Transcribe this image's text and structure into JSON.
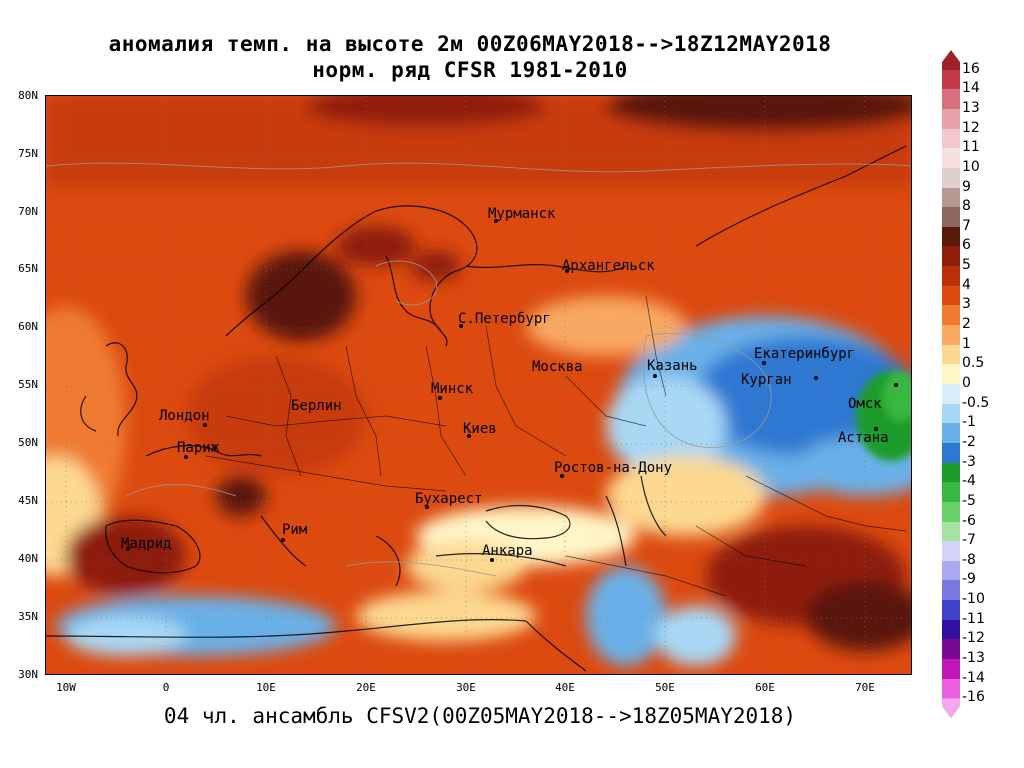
{
  "title": {
    "line1": "аномалия темп. на высоте 2м 00Z06MAY2018-->18Z12MAY2018",
    "line2": "норм. ряд CFSR 1981-2010"
  },
  "footer": "04 чл. ансамбль CFSV2(00Z05MAY2018-->18Z05MAY2018)",
  "map": {
    "lat_labels": [
      "80N",
      "75N",
      "70N",
      "65N",
      "60N",
      "55N",
      "50N",
      "45N",
      "40N",
      "35N",
      "30N"
    ],
    "lon_labels": [
      "10W",
      "0",
      "10E",
      "20E",
      "30E",
      "40E",
      "50E",
      "60E",
      "70E"
    ],
    "cities": [
      {
        "name": "Мурманск"
      },
      {
        "name": "Архангельск"
      },
      {
        "name": "С.Петербург"
      },
      {
        "name": "Москва"
      },
      {
        "name": "Казань"
      },
      {
        "name": "Екатеринбург"
      },
      {
        "name": "Курган"
      },
      {
        "name": "Омск"
      },
      {
        "name": "Астана"
      },
      {
        "name": "Минск"
      },
      {
        "name": "Киев"
      },
      {
        "name": "Берлин"
      },
      {
        "name": "Лондон"
      },
      {
        "name": "Париж"
      },
      {
        "name": "Ростов-на-Дону"
      },
      {
        "name": "Бухарест"
      },
      {
        "name": "Рим"
      },
      {
        "name": "Мадрид"
      },
      {
        "name": "Анкара"
      }
    ]
  },
  "colorbar": {
    "labels": [
      "16",
      "14",
      "13",
      "12",
      "11",
      "10",
      "9",
      "8",
      "7",
      "6",
      "5",
      "4",
      "3",
      "2",
      "1",
      "0.5",
      "0",
      "-0.5",
      "-1",
      "-2",
      "-3",
      "-4",
      "-5",
      "-6",
      "-7",
      "-8",
      "-9",
      "-10",
      "-11",
      "-12",
      "-13",
      "-14",
      "-16"
    ],
    "colors": [
      "#a0202a",
      "#c23a4a",
      "#d9707e",
      "#e8a0a8",
      "#f2c8cc",
      "#f6e0e0",
      "#e0d0cc",
      "#b59a92",
      "#8c6860",
      "#5a1808",
      "#8e1e08",
      "#b83206",
      "#dc4a10",
      "#f07a30",
      "#f8a860",
      "#fcd890",
      "#fff6c8",
      "#d8eef8",
      "#a8d8f4",
      "#6ab0e8",
      "#2e78d2",
      "#1a9c2a",
      "#38b840",
      "#6ad068",
      "#a4e4a0",
      "#d4d4f8",
      "#aaaaf0",
      "#7878e0",
      "#4040c8",
      "#3010a0",
      "#7a0890",
      "#c018b8",
      "#e860e0",
      "#f4a8f0"
    ]
  }
}
